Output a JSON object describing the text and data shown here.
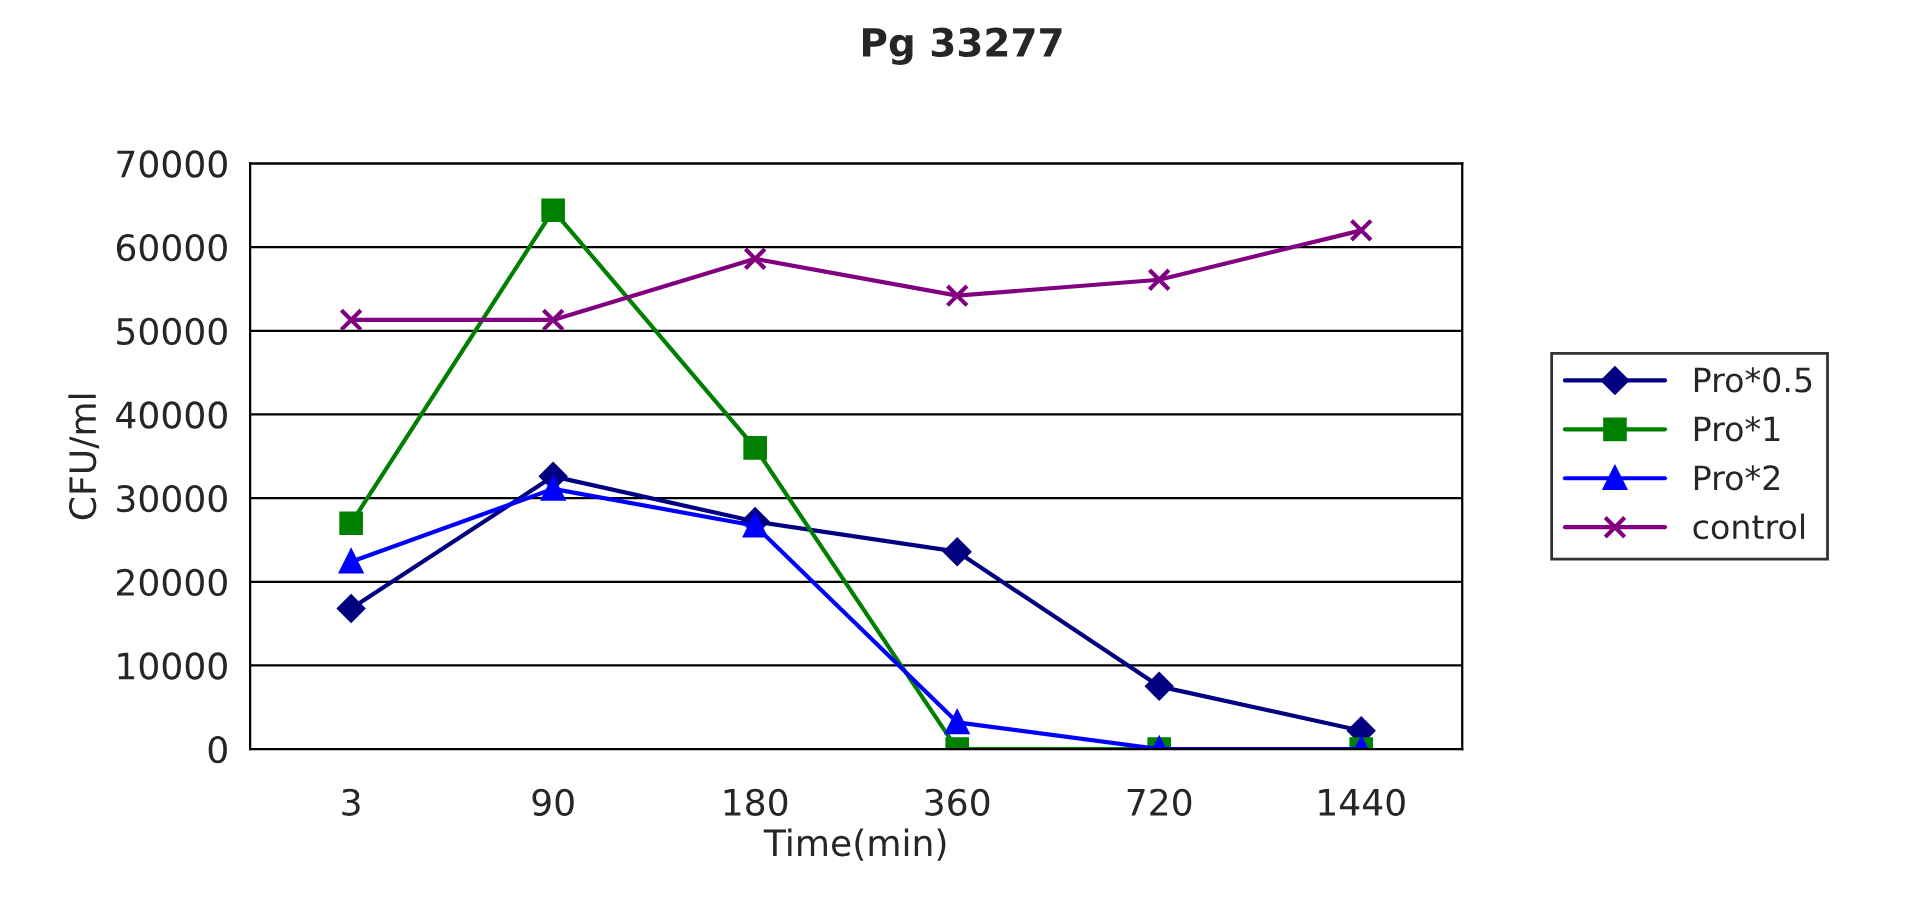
{
  "chart_data": {
    "type": "line",
    "title": "Pg 33277",
    "xlabel": "Time(min)",
    "ylabel": "CFU/ml",
    "categories": [
      "3",
      "90",
      "180",
      "360",
      "720",
      "1440"
    ],
    "series": [
      {
        "name": "Pro*0.5",
        "color": "#000080",
        "marker": "diamond",
        "values": [
          16800,
          32600,
          27200,
          23600,
          7500,
          2200
        ]
      },
      {
        "name": "Pro*1",
        "color": "#008000",
        "marker": "square",
        "values": [
          27000,
          64400,
          36000,
          0,
          0,
          0
        ]
      },
      {
        "name": "Pro*2",
        "color": "#0000ff",
        "marker": "triangle",
        "values": [
          22400,
          31100,
          26700,
          3200,
          0,
          0
        ]
      },
      {
        "name": "control",
        "color": "#800080",
        "marker": "cross",
        "values": [
          51300,
          51300,
          58600,
          54200,
          56100,
          62000
        ]
      }
    ],
    "ylim": [
      0,
      70000
    ],
    "yticks": [
      0,
      10000,
      20000,
      30000,
      40000,
      50000,
      60000,
      70000
    ],
    "grid": "y",
    "legend": "right",
    "line_style": "solid"
  }
}
